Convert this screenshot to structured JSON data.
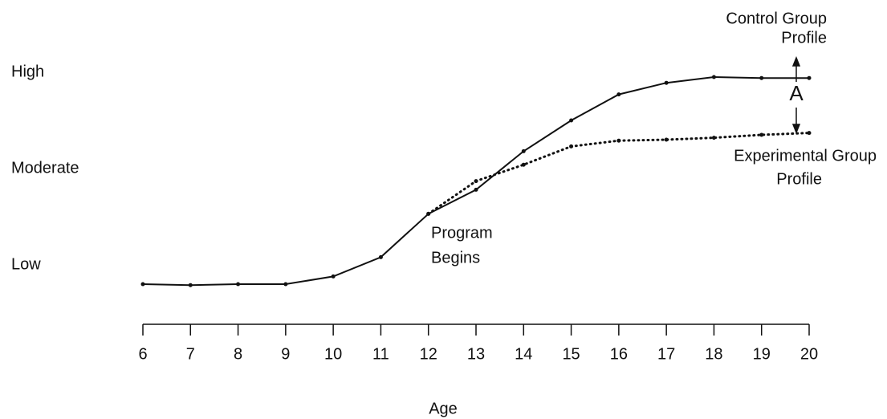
{
  "chart_data": {
    "type": "line",
    "x_label": "Age",
    "x": [
      6,
      7,
      8,
      9,
      10,
      11,
      12,
      13,
      14,
      15,
      16,
      17,
      18,
      19,
      20
    ],
    "xlim": [
      6,
      20
    ],
    "xticks": [
      6,
      7,
      8,
      9,
      10,
      11,
      12,
      13,
      14,
      15,
      16,
      17,
      18,
      19,
      20
    ],
    "ylim": [
      0.5,
      3.3
    ],
    "yticks": [
      {
        "value": 1,
        "label": "Low"
      },
      {
        "value": 2,
        "label": "Moderate"
      },
      {
        "value": 3,
        "label": "High"
      }
    ],
    "series": [
      {
        "name": "Control Group Profile",
        "color": "#111111",
        "style": "solid",
        "values": [
          0.8,
          0.79,
          0.8,
          0.8,
          0.88,
          1.08,
          1.53,
          1.78,
          2.18,
          2.5,
          2.77,
          2.89,
          2.95,
          2.94,
          2.94
        ]
      },
      {
        "name": "Experimental Group Profile",
        "color": "#111111",
        "style": "dotted",
        "values": [
          null,
          null,
          null,
          null,
          null,
          null,
          1.53,
          1.87,
          2.04,
          2.23,
          2.29,
          2.3,
          2.32,
          2.35,
          2.37
        ]
      }
    ],
    "annotations": {
      "control": [
        "Control Group",
        "Profile"
      ],
      "experimental": [
        "Experimental Group",
        "Profile"
      ],
      "program": [
        "Program",
        "Begins"
      ],
      "gap": "A"
    }
  }
}
